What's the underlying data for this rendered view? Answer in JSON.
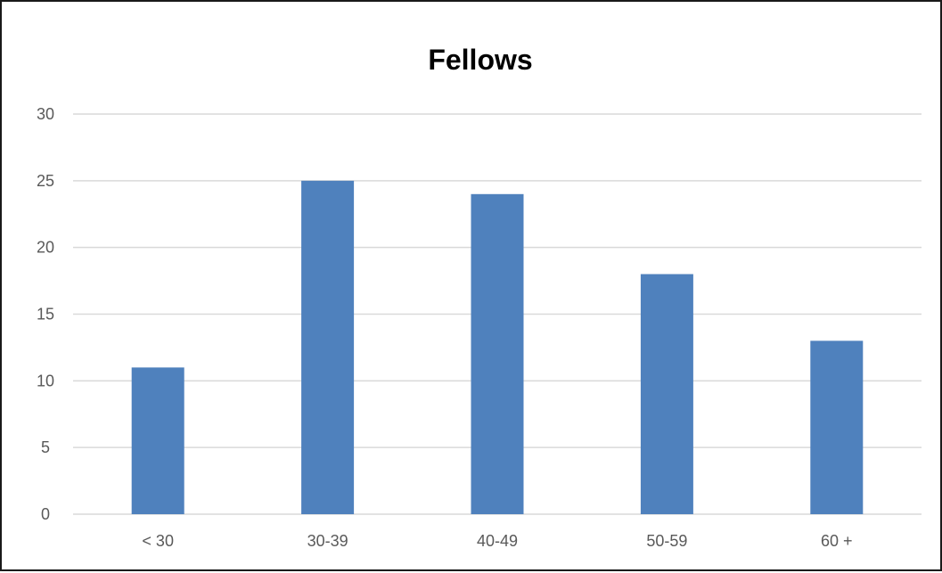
{
  "chart_data": {
    "type": "bar",
    "title": "Fellows",
    "xlabel": "",
    "ylabel": "",
    "categories": [
      "< 30",
      "30-39",
      "40-49",
      "50-59",
      "60 +"
    ],
    "values": [
      11,
      25,
      24,
      18,
      13
    ],
    "ylim": [
      0,
      30
    ],
    "yticks": [
      "0",
      "5",
      "10",
      "15",
      "20",
      "25",
      "30"
    ],
    "grid": true,
    "legend": "none",
    "colors": {
      "bar": "#4f81bd",
      "grid": "#d9d9d9",
      "axis_text": "#595959",
      "title": "#000000",
      "border": "#1a1a1a"
    }
  }
}
